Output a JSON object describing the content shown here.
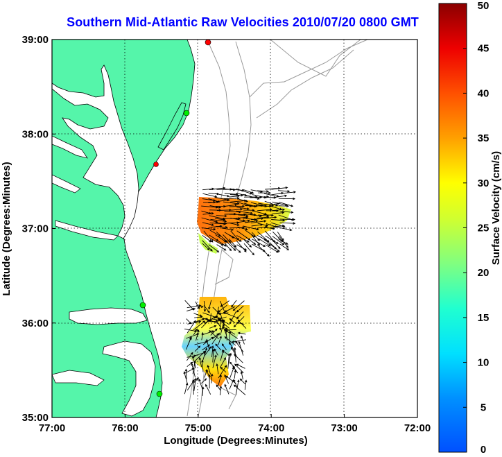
{
  "title": "Southern Mid-Atlantic Raw Velocities 2010/07/20 0800 GMT",
  "xlabel": "Longitude (Degrees:Minutes)",
  "ylabel": "Latitude (Degrees:Minutes)",
  "x_ticks": [
    "77:00",
    "76:00",
    "75:00",
    "74:00",
    "73:00",
    "72:00"
  ],
  "y_ticks": [
    "39:00",
    "38:00",
    "37:00",
    "36:00",
    "35:00"
  ],
  "colorbar": {
    "label": "Surface Velocity (cm/s)",
    "ticks": [
      "0",
      "5",
      "10",
      "15",
      "20",
      "25",
      "30",
      "35",
      "40",
      "45",
      "50"
    ],
    "range": [
      0,
      50
    ],
    "colormap": "jet"
  },
  "colors": {
    "land": "#55f5aa",
    "water": "#ffffff",
    "title": "#0000ff",
    "coast_line": "#000000",
    "bathymetry": "#999999",
    "grid": "#000000"
  },
  "map": {
    "lon_range": [
      -77,
      -72
    ],
    "lat_range": [
      35,
      39
    ],
    "grid": true,
    "grid_style": "dotted"
  }
}
